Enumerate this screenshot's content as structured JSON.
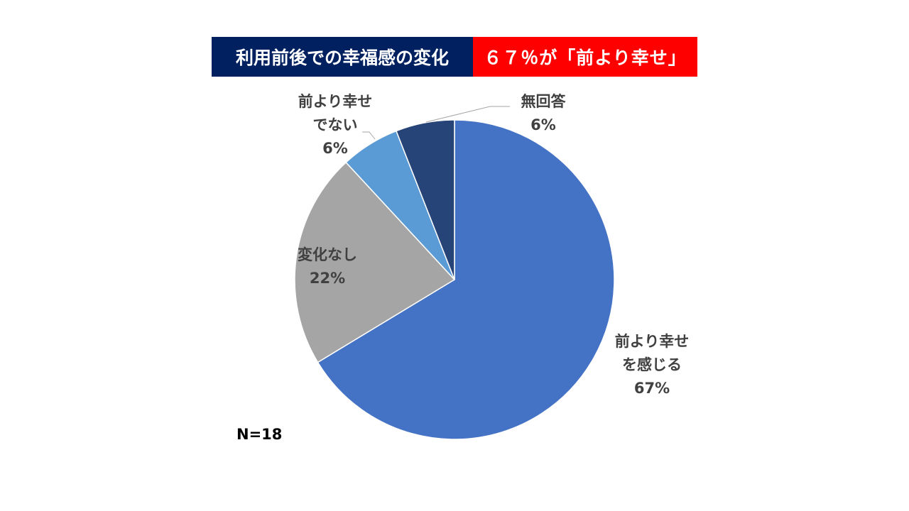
{
  "header": {
    "title": "利用前後での幸福感の変化",
    "highlight": "６７％が「前より幸せ」",
    "title_bg": "#002060",
    "highlight_bg": "#ff0000"
  },
  "sample_size_label": "N=18",
  "chart_data": {
    "type": "pie",
    "title": "利用前後での幸福感の変化",
    "start": "12 o'clock, clockwise",
    "slices": [
      {
        "name": "前より幸せを感じる",
        "label_lines": [
          "前より幸せ",
          "を感じる"
        ],
        "value": 67,
        "label": "67%",
        "color": "#4472c4"
      },
      {
        "name": "変化なし",
        "label_lines": [
          "変化なし"
        ],
        "value": 22,
        "label": "22%",
        "color": "#a5a5a5"
      },
      {
        "name": "前より幸せでない",
        "label_lines": [
          "前より幸せ",
          "でない"
        ],
        "value": 6,
        "label": "6%",
        "color": "#5b9bd5"
      },
      {
        "name": "無回答",
        "label_lines": [
          "無回答"
        ],
        "value": 6,
        "label": "6%",
        "color": "#264478"
      }
    ]
  }
}
